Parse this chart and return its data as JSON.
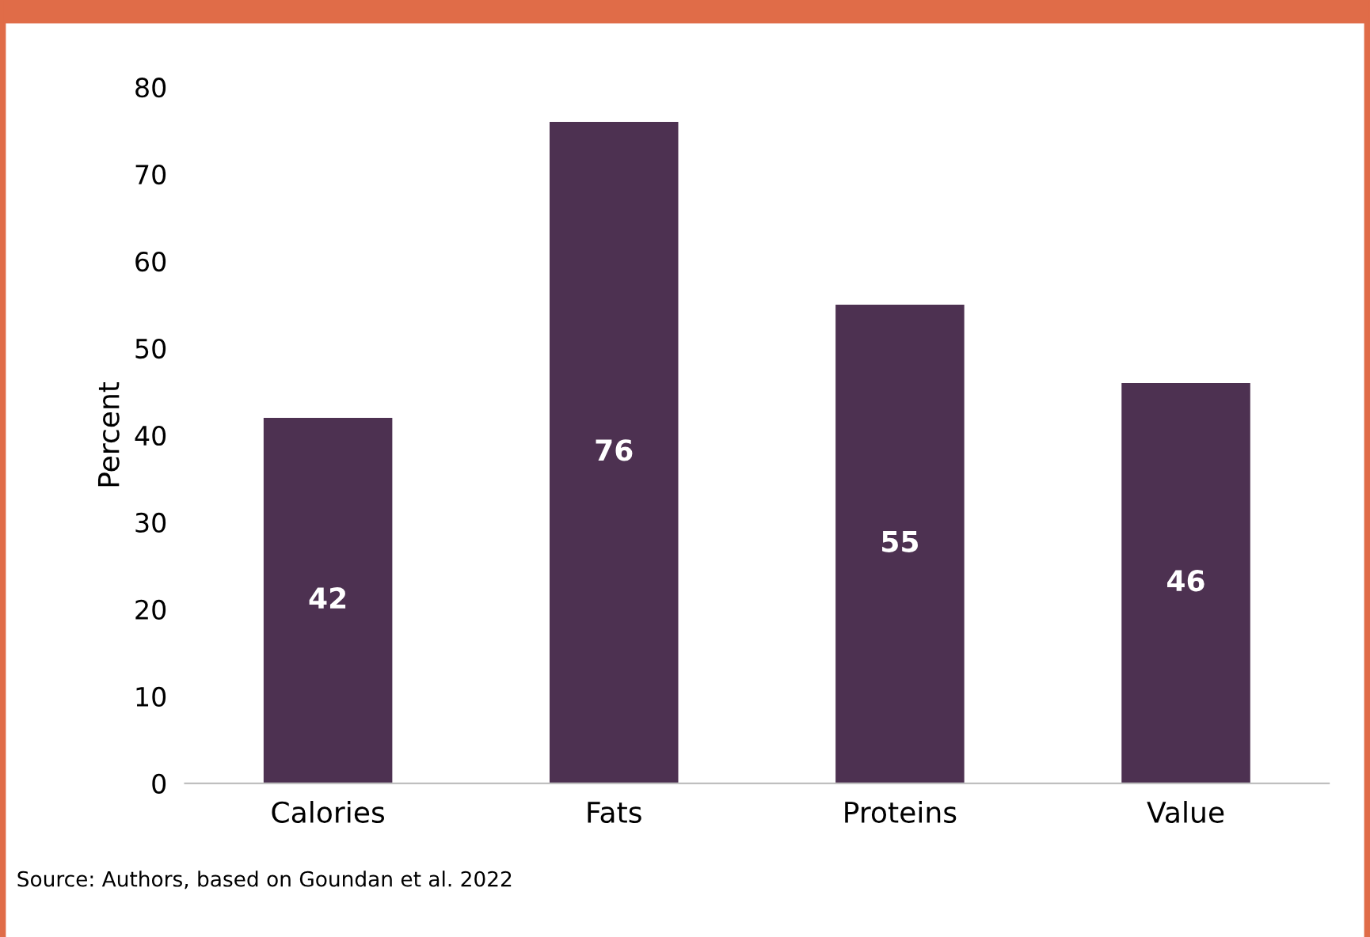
{
  "chart_data": {
    "type": "bar",
    "ylabel": "Percent",
    "categories": [
      "Calories",
      "Fats",
      "Proteins",
      "Value"
    ],
    "values": [
      42,
      76,
      55,
      46
    ],
    "color": "#4d3151",
    "ylim": [
      0,
      80
    ],
    "yticks": [
      0,
      10,
      20,
      30,
      40,
      50,
      60,
      70,
      80
    ],
    "data_labels": true,
    "grid": false,
    "legend": false,
    "annotations": [
      "Source: Authors, based on Goundan et al. 2022"
    ]
  }
}
